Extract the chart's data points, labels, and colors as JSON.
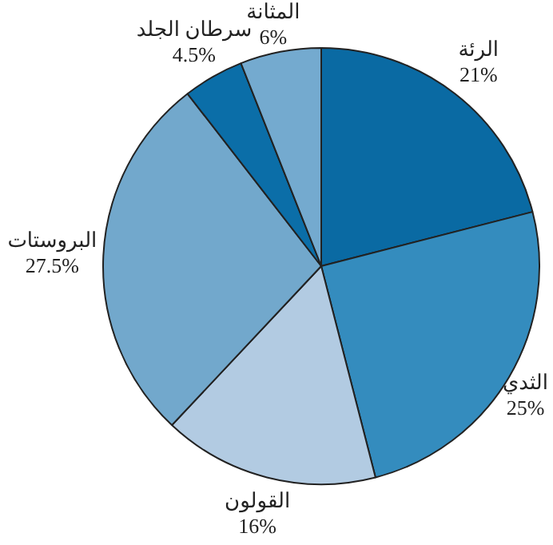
{
  "chart_data": {
    "type": "pie",
    "categories": [
      "الرئة",
      "الثدي",
      "القولون",
      "البروستات",
      "سرطان الجلد",
      "المثانة"
    ],
    "values": [
      21,
      25,
      16,
      27.5,
      4.5,
      6
    ],
    "value_labels": [
      "21%",
      "25%",
      "16%",
      "27.5%",
      "4.5%",
      "6%"
    ],
    "colors": [
      "#0a6aa3",
      "#348cbe",
      "#b2cbe2",
      "#72a8cc",
      "#0b6ea8",
      "#74aacf"
    ],
    "legend": false
  }
}
